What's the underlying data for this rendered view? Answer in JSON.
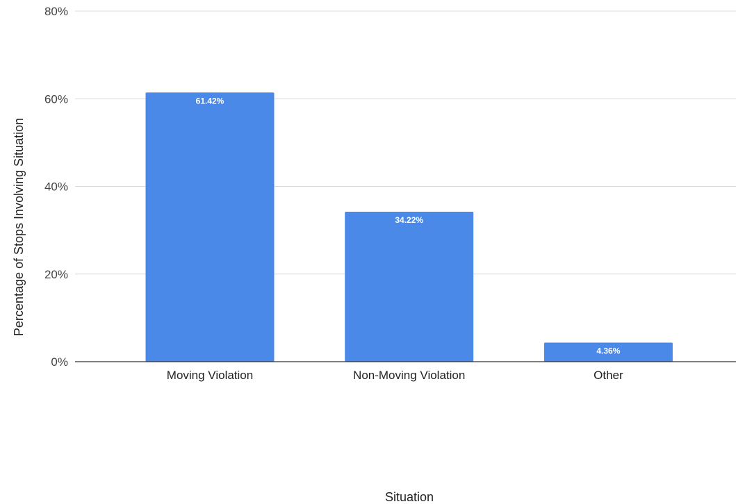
{
  "chart_data": {
    "type": "bar",
    "categories": [
      "Moving Violation",
      "Non-Moving Violation",
      "Other"
    ],
    "values": [
      61.42,
      34.22,
      4.36
    ],
    "data_labels": [
      "61.42%",
      "34.22%",
      "4.36%"
    ],
    "title": "",
    "xlabel": "Situation",
    "ylabel": "Percentage of Stops Involving Situation",
    "ylim": [
      0,
      80
    ],
    "yticks": [
      0,
      20,
      40,
      60,
      80
    ],
    "ytick_labels": [
      "0%",
      "20%",
      "40%",
      "60%",
      "80%"
    ],
    "grid": true,
    "legend": "none",
    "bar_color": "#4a89e8",
    "grid_color": "#d9d9d9",
    "axis_color": "#333333"
  }
}
